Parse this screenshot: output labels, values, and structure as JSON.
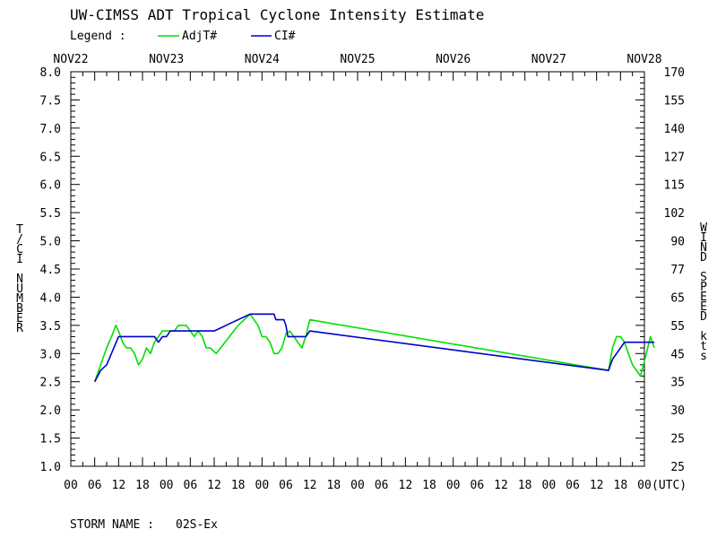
{
  "chart_data": {
    "type": "line",
    "title": "UW-CIMSS ADT Tropical Cyclone Intensity Estimate",
    "legend": {
      "label": "Legend :",
      "placement": "top-left",
      "entries": [
        {
          "name": "AdjT#",
          "color": "#00e000"
        },
        {
          "name": "CI#",
          "color": "#0000c8"
        }
      ]
    },
    "ylabel": "T/CI NUMBER",
    "y2label": "WIND SPEED kts",
    "ylim": [
      1.0,
      8.0
    ],
    "yticks": [
      "1.0",
      "1.5",
      "2.0",
      "2.5",
      "3.0",
      "3.5",
      "4.0",
      "4.5",
      "5.0",
      "5.5",
      "6.0",
      "6.5",
      "7.0",
      "7.5",
      "8.0"
    ],
    "y2ticks": [
      "25",
      "25",
      "30",
      "35",
      "45",
      "55",
      "65",
      "77",
      "90",
      "102",
      "115",
      "127",
      "140",
      "155",
      "170"
    ],
    "xlim_hours": [
      0,
      144
    ],
    "top_dates": [
      "NOV22",
      "NOV23",
      "NOV24",
      "NOV25",
      "NOV26",
      "NOV27",
      "NOV28"
    ],
    "bottom_hours": [
      "00",
      "06",
      "12",
      "18",
      "00",
      "06",
      "12",
      "18",
      "00",
      "06",
      "12",
      "18",
      "00",
      "06",
      "12",
      "18",
      "00",
      "06",
      "12",
      "18",
      "00",
      "06",
      "12",
      "18",
      "00"
    ],
    "utc_label": "(UTC)",
    "grid": false,
    "series": [
      {
        "name": "AdjT#",
        "color": "#00e000",
        "points": [
          [
            6.0,
            2.5
          ],
          [
            7.5,
            2.8
          ],
          [
            9.0,
            3.1
          ],
          [
            10.5,
            3.35
          ],
          [
            11.3,
            3.5
          ],
          [
            12.0,
            3.4
          ],
          [
            13.0,
            3.2
          ],
          [
            14.0,
            3.1
          ],
          [
            15.0,
            3.1
          ],
          [
            16.0,
            3.0
          ],
          [
            17.0,
            2.8
          ],
          [
            18.0,
            2.9
          ],
          [
            19.0,
            3.1
          ],
          [
            20.0,
            3.0
          ],
          [
            21.0,
            3.2
          ],
          [
            22.0,
            3.3
          ],
          [
            23.0,
            3.4
          ],
          [
            24.0,
            3.4
          ],
          [
            25.0,
            3.4
          ],
          [
            26.0,
            3.4
          ],
          [
            27.0,
            3.5
          ],
          [
            28.0,
            3.5
          ],
          [
            29.0,
            3.5
          ],
          [
            30.0,
            3.4
          ],
          [
            31.0,
            3.3
          ],
          [
            32.0,
            3.4
          ],
          [
            33.0,
            3.3
          ],
          [
            34.0,
            3.1
          ],
          [
            35.0,
            3.1
          ],
          [
            36.5,
            3.0
          ],
          [
            42.0,
            3.5
          ],
          [
            45.0,
            3.7
          ],
          [
            47.0,
            3.5
          ],
          [
            48.0,
            3.3
          ],
          [
            49.0,
            3.3
          ],
          [
            50.0,
            3.2
          ],
          [
            51.0,
            3.0
          ],
          [
            52.0,
            3.0
          ],
          [
            53.0,
            3.1
          ],
          [
            54.0,
            3.35
          ],
          [
            55.0,
            3.4
          ],
          [
            56.0,
            3.3
          ],
          [
            57.0,
            3.2
          ],
          [
            58.0,
            3.1
          ],
          [
            59.0,
            3.3
          ],
          [
            60.0,
            3.6
          ],
          [
            135.0,
            2.7
          ],
          [
            136.0,
            3.1
          ],
          [
            137.0,
            3.3
          ],
          [
            138.0,
            3.3
          ],
          [
            139.0,
            3.2
          ],
          [
            140.0,
            3.0
          ],
          [
            141.0,
            2.8
          ],
          [
            142.0,
            2.7
          ],
          [
            143.0,
            2.6
          ],
          [
            144.5,
            3.0
          ],
          [
            145.5,
            3.3
          ],
          [
            146.5,
            3.1
          ]
        ]
      },
      {
        "name": "CI#",
        "color": "#0000c8",
        "points": [
          [
            6.0,
            2.5
          ],
          [
            7.5,
            2.7
          ],
          [
            9.0,
            2.8
          ],
          [
            10.5,
            3.05
          ],
          [
            12.0,
            3.3
          ],
          [
            21.0,
            3.3
          ],
          [
            22.0,
            3.2
          ],
          [
            23.0,
            3.3
          ],
          [
            24.0,
            3.3
          ],
          [
            25.0,
            3.4
          ],
          [
            36.0,
            3.4
          ],
          [
            45.0,
            3.7
          ],
          [
            51.0,
            3.7
          ],
          [
            51.5,
            3.6
          ],
          [
            53.5,
            3.6
          ],
          [
            54.0,
            3.5
          ],
          [
            54.5,
            3.3
          ],
          [
            59.0,
            3.3
          ],
          [
            60.0,
            3.4
          ],
          [
            135.0,
            2.7
          ],
          [
            136.0,
            2.9
          ],
          [
            137.0,
            3.0
          ],
          [
            138.0,
            3.1
          ],
          [
            139.0,
            3.2
          ],
          [
            146.5,
            3.2
          ]
        ]
      }
    ],
    "annotation": {
      "storm_label": "STORM NAME :",
      "storm_name": "02S-Ex"
    }
  }
}
